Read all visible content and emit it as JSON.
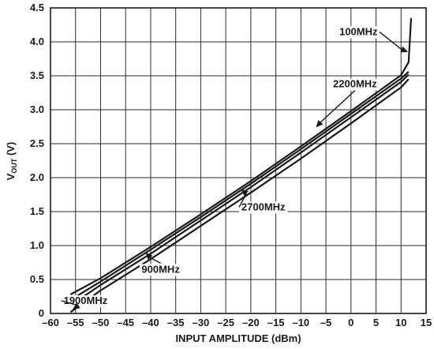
{
  "chart_data": {
    "type": "line",
    "xlabel": "INPUT AMPLITUDE (dBm)",
    "ylabel_main": "V",
    "ylabel_sub": "OUT",
    "ylabel_unit": " (V)",
    "xlim": [
      -60,
      15
    ],
    "ylim": [
      0,
      4.5
    ],
    "x_ticks": [
      -60,
      -55,
      -50,
      -45,
      -40,
      -35,
      -30,
      -25,
      -20,
      -15,
      -10,
      -5,
      0,
      5,
      10,
      15
    ],
    "x_tick_labels": [
      "–60",
      "–55",
      "–50",
      "–45",
      "–40",
      "–35",
      "–30",
      "–25",
      "–20",
      "–15",
      "–10",
      "–5",
      "0",
      "5",
      "10",
      "15"
    ],
    "y_ticks": [
      0,
      0.5,
      1.0,
      1.5,
      2.0,
      2.5,
      3.0,
      3.5,
      4.0,
      4.5
    ],
    "y_tick_labels": [
      "0",
      "0.5",
      "1.0",
      "1.5",
      "2.0",
      "2.5",
      "3.0",
      "3.5",
      "4.0",
      "4.5"
    ],
    "grid": true,
    "series": [
      {
        "name": "100MHz",
        "x": [
          -56,
          -50,
          -40,
          -30,
          -20,
          -10,
          0,
          10,
          11.5,
          12
        ],
        "y": [
          0.28,
          0.52,
          0.98,
          1.46,
          1.95,
          2.46,
          2.98,
          3.51,
          3.7,
          4.35
        ]
      },
      {
        "name": "2200MHz",
        "x": [
          -56,
          -50,
          -40,
          -30,
          -20,
          -10,
          0,
          10,
          11.5
        ],
        "y": [
          0.2,
          0.47,
          0.94,
          1.42,
          1.91,
          2.42,
          2.94,
          3.46,
          3.56
        ]
      },
      {
        "name": "900MHz",
        "x": [
          -56,
          -50,
          -40,
          -30,
          -20,
          -10,
          0,
          10,
          11.5
        ],
        "y": [
          0.12,
          0.42,
          0.88,
          1.37,
          1.86,
          2.37,
          2.89,
          3.41,
          3.52
        ]
      },
      {
        "name": "2700MHz",
        "x": [
          -56,
          -50,
          -40,
          -30,
          -20,
          -10,
          0,
          10,
          11.5
        ],
        "y": [
          0.02,
          0.34,
          0.8,
          1.29,
          1.78,
          2.28,
          2.8,
          3.33,
          3.45
        ]
      }
    ],
    "annotations": [
      {
        "text": "100MHz",
        "tx": 1.5,
        "ty": 4.1,
        "ax": 11.4,
        "ay": 3.85
      },
      {
        "text": "2200MHz",
        "tx": 0.8,
        "ty": 3.33,
        "ax": -7,
        "ay": 2.74
      },
      {
        "text": "2700MHz",
        "tx": -17.5,
        "ty": 1.52,
        "ax": -22,
        "ay": 1.83
      },
      {
        "text": "900MHz",
        "tx": -38,
        "ty": 0.6,
        "ax": -41,
        "ay": 0.9
      },
      {
        "text": "1900MHz",
        "tx": -53,
        "ty": 0.14,
        "ax": -55.6,
        "ay": 0.06
      }
    ]
  }
}
